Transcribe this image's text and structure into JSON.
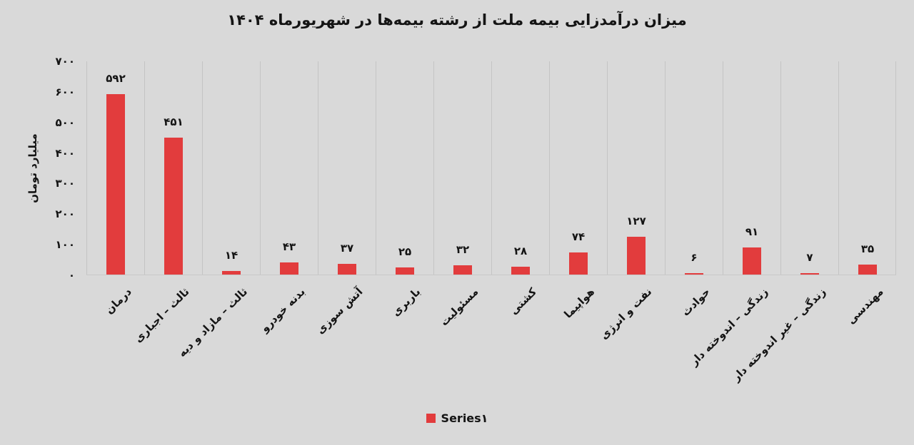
{
  "colors": {
    "background": "#D9D9D9",
    "bar": "#E23C3D",
    "gridline": "#C4C4C4",
    "axis_line": "#C9C9C9",
    "text": "#141414"
  },
  "legend": {
    "label": "Series۱"
  },
  "chart_data": {
    "type": "bar",
    "title": "میزان درآمدزایی بیمه ملت از رشته بیمه‌ها در شهریورماه ۱۴۰۴",
    "xlabel": "",
    "ylabel": "میلیارد تومان",
    "categories": [
      "درمان",
      "ثالث – اجباری",
      "ثالث – مازاد و دیه",
      "بدنه خودرو",
      "آتش سوزی",
      "باربری",
      "مسئولیت",
      "کشتی",
      "هواپیما",
      "نفت و انرژی",
      "حوادث",
      "زندگی – اندوخته دار",
      "زندگی – غیر اندوخته دار",
      "مهندسی"
    ],
    "values": [
      592,
      451,
      14,
      43,
      37,
      25,
      32,
      28,
      74,
      127,
      6,
      91,
      7,
      35
    ],
    "series_name": "Series۱",
    "ylim": [
      0,
      700
    ],
    "yticks": [
      0,
      100,
      200,
      300,
      400,
      500,
      600,
      700
    ],
    "grid": "vertical-category-separators",
    "legend_position": "bottom",
    "digit_style": "persian",
    "bar_color": "#E23C3D"
  }
}
